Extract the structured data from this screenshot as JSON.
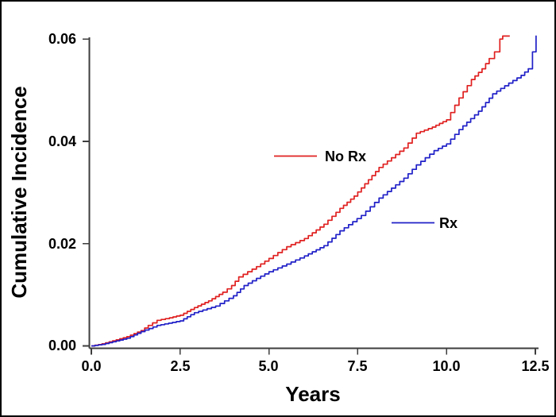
{
  "figure": {
    "bg_color": "#ffffff",
    "border_color": "#000000",
    "axis_color": "#3d3d3d",
    "text_color": "#000000"
  },
  "chart_data": {
    "type": "line",
    "line_style": "step-after",
    "title": "",
    "xlabel": "Years",
    "ylabel": "Cumulative Incidence",
    "xlim": [
      0,
      12.6
    ],
    "ylim": [
      0,
      0.062
    ],
    "grid": false,
    "x_tick_values": [
      0,
      2.5,
      5,
      7.5,
      10,
      12.5
    ],
    "x_tick_labels": [
      "0.0",
      "2.5",
      "5.0",
      "7.5",
      "10.0",
      "12.5"
    ],
    "y_tick_values": [
      0,
      0.02,
      0.04,
      0.06
    ],
    "y_tick_labels": [
      "0.00",
      "0.02",
      "0.04",
      "0.06"
    ],
    "legend_position": "inline-annotations",
    "series": [
      {
        "name": "No Rx",
        "color": "#e02020",
        "points": [
          [
            0,
            0
          ],
          [
            0.3,
            0.0004
          ],
          [
            0.6,
            0.001
          ],
          [
            1.0,
            0.0018
          ],
          [
            1.4,
            0.003
          ],
          [
            1.6,
            0.004
          ],
          [
            1.85,
            0.005
          ],
          [
            2.2,
            0.0055
          ],
          [
            2.5,
            0.006
          ],
          [
            2.9,
            0.0075
          ],
          [
            3.3,
            0.0088
          ],
          [
            3.7,
            0.0105
          ],
          [
            3.95,
            0.0118
          ],
          [
            4.15,
            0.0135
          ],
          [
            4.65,
            0.0155
          ],
          [
            5.0,
            0.0171
          ],
          [
            5.5,
            0.0194
          ],
          [
            6.0,
            0.021
          ],
          [
            6.55,
            0.0238
          ],
          [
            7.0,
            0.0269
          ],
          [
            7.4,
            0.0293
          ],
          [
            7.8,
            0.0325
          ],
          [
            8.1,
            0.0349
          ],
          [
            8.8,
            0.0387
          ],
          [
            9.15,
            0.0416
          ],
          [
            9.6,
            0.0428
          ],
          [
            10.0,
            0.0442
          ],
          [
            10.35,
            0.0485
          ],
          [
            10.7,
            0.0521
          ],
          [
            11.0,
            0.0542
          ],
          [
            11.2,
            0.0562
          ],
          [
            11.35,
            0.0575
          ],
          [
            11.5,
            0.06
          ],
          [
            11.58,
            0.0606
          ],
          [
            11.78,
            0.0606
          ]
        ]
      },
      {
        "name": "Rx",
        "color": "#2020c8",
        "points": [
          [
            0,
            0
          ],
          [
            0.3,
            0.0003
          ],
          [
            0.6,
            0.0008
          ],
          [
            1.0,
            0.0015
          ],
          [
            1.4,
            0.0028
          ],
          [
            1.85,
            0.004
          ],
          [
            2.5,
            0.0049
          ],
          [
            2.9,
            0.0065
          ],
          [
            3.5,
            0.0078
          ],
          [
            4.0,
            0.0098
          ],
          [
            4.3,
            0.0118
          ],
          [
            4.65,
            0.0132
          ],
          [
            5.0,
            0.0145
          ],
          [
            5.5,
            0.016
          ],
          [
            6.0,
            0.0176
          ],
          [
            6.55,
            0.0196
          ],
          [
            7.0,
            0.0225
          ],
          [
            7.6,
            0.0255
          ],
          [
            8.1,
            0.0289
          ],
          [
            8.8,
            0.0328
          ],
          [
            9.15,
            0.0354
          ],
          [
            9.65,
            0.0382
          ],
          [
            10.0,
            0.0395
          ],
          [
            10.35,
            0.0423
          ],
          [
            10.9,
            0.0459
          ],
          [
            11.3,
            0.0493
          ],
          [
            11.75,
            0.0514
          ],
          [
            12.1,
            0.0529
          ],
          [
            12.3,
            0.0542
          ],
          [
            12.42,
            0.0575
          ],
          [
            12.52,
            0.0607
          ]
        ]
      }
    ]
  }
}
